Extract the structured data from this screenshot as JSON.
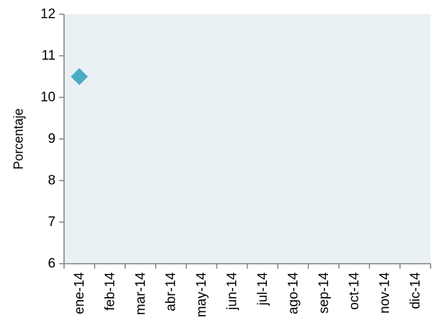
{
  "chart_data": {
    "type": "scatter",
    "title": "",
    "xlabel": "",
    "ylabel": "Porcentaje",
    "categories": [
      "ene-14",
      "feb-14",
      "mar-14",
      "abr-14",
      "may-14",
      "jun-14",
      "jul-14",
      "ago-14",
      "sep-14",
      "oct-14",
      "nov-14",
      "dic-14"
    ],
    "series": [
      {
        "values": [
          10.5,
          null,
          null,
          null,
          null,
          null,
          null,
          null,
          null,
          null,
          null,
          null
        ]
      }
    ],
    "ylim": [
      6,
      12
    ],
    "yticks": [
      6,
      7,
      8,
      9,
      10,
      11,
      12
    ],
    "grid": false,
    "legend": "none",
    "marker": "diamond"
  },
  "colors": {
    "plot_background": "#eaf1f5",
    "marker": "#4aabc4",
    "axis": "#808080"
  }
}
